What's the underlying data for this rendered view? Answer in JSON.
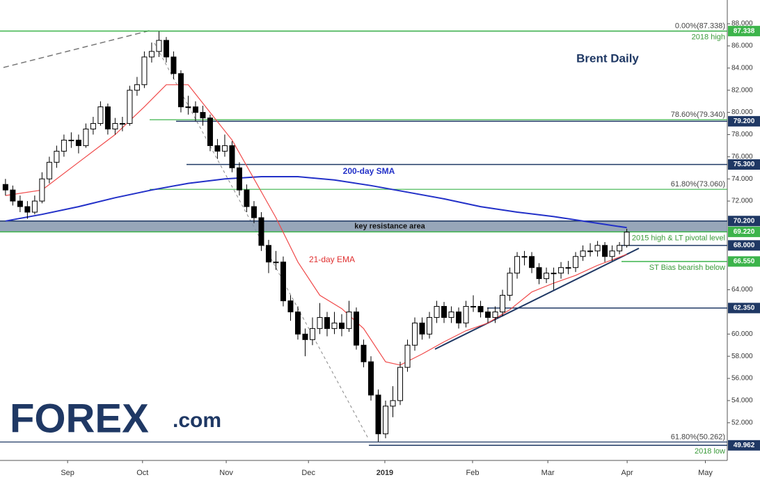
{
  "chart_data": {
    "type": "candlestick",
    "title": "Brent Daily",
    "logo": {
      "brand": "FOREX",
      "suffix": ".com"
    },
    "xlim": [
      -1.5,
      197.5
    ],
    "xticks": [
      {
        "value": 17,
        "label": "Sep"
      },
      {
        "value": 37.5,
        "label": "Oct"
      },
      {
        "value": 60.4,
        "label": "Nov"
      },
      {
        "value": 82.9,
        "label": "Dec"
      },
      {
        "value": 103.8,
        "label": "2019"
      },
      {
        "value": 127.8,
        "label": "Feb"
      },
      {
        "value": 148.4,
        "label": "Mar"
      },
      {
        "value": 170.1,
        "label": "Apr"
      },
      {
        "value": 191.5,
        "label": "May"
      }
    ],
    "ylim": [
      48.6,
      90.14
    ],
    "yticks": [
      {
        "value": 52,
        "label": "52.000"
      },
      {
        "value": 54,
        "label": "54.000"
      },
      {
        "value": 56,
        "label": "56.000"
      },
      {
        "value": 58,
        "label": "58.000"
      },
      {
        "value": 60,
        "label": "60.000"
      },
      {
        "value": 64,
        "label": "64.000"
      },
      {
        "value": 72,
        "label": "72.000"
      },
      {
        "value": 74,
        "label": "74.000"
      },
      {
        "value": 76,
        "label": "76.000"
      },
      {
        "value": 78,
        "label": "78.000"
      },
      {
        "value": 80,
        "label": "80.000"
      },
      {
        "value": 82,
        "label": "82.000"
      },
      {
        "value": 84,
        "label": "84.000"
      },
      {
        "value": 86,
        "label": "86.000"
      },
      {
        "value": 88,
        "label": "88.000"
      }
    ],
    "up_color": "#ffffff",
    "down_color": "#000000",
    "x": [
      0,
      2,
      4,
      6,
      8,
      10,
      12,
      14,
      16,
      18,
      20,
      22,
      24,
      26,
      28,
      30,
      32,
      34,
      36,
      38,
      40,
      42,
      44,
      46,
      48,
      50,
      52,
      54,
      56,
      58,
      60,
      62,
      64,
      66,
      68,
      70,
      72,
      74,
      76,
      78,
      80,
      82,
      84,
      86,
      88,
      90,
      92,
      94,
      96,
      98,
      100,
      102,
      104,
      106,
      108,
      110,
      112,
      114,
      116,
      118,
      120,
      122,
      124,
      126,
      128,
      130,
      132,
      134,
      136,
      138,
      140,
      142,
      144,
      146,
      148,
      150,
      152,
      154,
      156,
      158,
      160,
      162,
      164,
      166,
      168,
      170
    ],
    "ohlc": [
      [
        73.5,
        74,
        72.5,
        73
      ],
      [
        73,
        73.4,
        71.6,
        72
      ],
      [
        72,
        72.5,
        71,
        71.5
      ],
      [
        71.5,
        72,
        70.4,
        71
      ],
      [
        71,
        72.5,
        70.8,
        72
      ],
      [
        72,
        74.6,
        71.8,
        74
      ],
      [
        74,
        76,
        73.6,
        75.5
      ],
      [
        75.5,
        77,
        75,
        76.5
      ],
      [
        76.5,
        78,
        76,
        77.5
      ],
      [
        77.5,
        78.2,
        76.8,
        77.5
      ],
      [
        77.5,
        78,
        76.3,
        77
      ],
      [
        77,
        79,
        76.8,
        78.5
      ],
      [
        78.5,
        79.6,
        78,
        79
      ],
      [
        79,
        81,
        78.8,
        80.5
      ],
      [
        80.5,
        80.8,
        78,
        78.5
      ],
      [
        78.5,
        79.5,
        78,
        79
      ],
      [
        79,
        79.6,
        78.3,
        79
      ],
      [
        79,
        82.4,
        78.8,
        82
      ],
      [
        82,
        83.2,
        81.5,
        82.5
      ],
      [
        82.5,
        85.5,
        82.2,
        85
      ],
      [
        85,
        86.3,
        84.5,
        85.5
      ],
      [
        85.5,
        87.3,
        85,
        86.5
      ],
      [
        86.5,
        86.8,
        84.5,
        85
      ],
      [
        85,
        85.5,
        83,
        83.5
      ],
      [
        83.5,
        83.8,
        80,
        80.5
      ],
      [
        80.5,
        81.5,
        79.8,
        80.5
      ],
      [
        80.5,
        81,
        79.2,
        80
      ],
      [
        80,
        80.6,
        78.8,
        79.5
      ],
      [
        79.5,
        79.8,
        76.5,
        77
      ],
      [
        77,
        77.6,
        75.8,
        76.5
      ],
      [
        76.5,
        78,
        76,
        77
      ],
      [
        77,
        77.4,
        74.6,
        75
      ],
      [
        75,
        75.5,
        72.5,
        73
      ],
      [
        73,
        73.5,
        71,
        71.5
      ],
      [
        71.5,
        72,
        70,
        70.5
      ],
      [
        70.5,
        71,
        67.5,
        68
      ],
      [
        68,
        68.5,
        65.5,
        66.5
      ],
      [
        66.5,
        67.5,
        65.8,
        66.5
      ],
      [
        66.5,
        67,
        62.5,
        63
      ],
      [
        63,
        63.5,
        61.2,
        62
      ],
      [
        62,
        62.5,
        59.5,
        60
      ],
      [
        60,
        60.5,
        58,
        59.5
      ],
      [
        59.5,
        61.5,
        59,
        60.5
      ],
      [
        60.5,
        62.8,
        60,
        61.5
      ],
      [
        61.5,
        62,
        59.8,
        60.5
      ],
      [
        60.5,
        62,
        60,
        61
      ],
      [
        61,
        61.8,
        59.8,
        60.5
      ],
      [
        60.5,
        63,
        60.2,
        62
      ],
      [
        62,
        62.4,
        58.6,
        59
      ],
      [
        59,
        59.5,
        57,
        57.5
      ],
      [
        57.5,
        58,
        54,
        54.5
      ],
      [
        54.5,
        55,
        50.3,
        51
      ],
      [
        51,
        54,
        50.6,
        53.5
      ],
      [
        53.5,
        55.3,
        52.5,
        54
      ],
      [
        54,
        57.5,
        53.6,
        57
      ],
      [
        57,
        59.5,
        56.6,
        59
      ],
      [
        59,
        61.5,
        58.5,
        61
      ],
      [
        61,
        61.5,
        59.5,
        60
      ],
      [
        60,
        62,
        59.6,
        61.5
      ],
      [
        61.5,
        63,
        61,
        62.5
      ],
      [
        62.5,
        62.9,
        61,
        61.5
      ],
      [
        61.5,
        62.5,
        61,
        62
      ],
      [
        62,
        62.4,
        60.5,
        61
      ],
      [
        61,
        63,
        60.6,
        62.5
      ],
      [
        62.5,
        63.5,
        62,
        62.5
      ],
      [
        62.5,
        63,
        61.5,
        62
      ],
      [
        62,
        62.4,
        61,
        61.5
      ],
      [
        61.5,
        62.5,
        61,
        62
      ],
      [
        62,
        64,
        61.6,
        63.5
      ],
      [
        63.5,
        66,
        63,
        65.5
      ],
      [
        65.5,
        67.4,
        65,
        67
      ],
      [
        67,
        67.5,
        66.2,
        67
      ],
      [
        67,
        67.4,
        65.5,
        66
      ],
      [
        66,
        66.4,
        64.5,
        65
      ],
      [
        65,
        66,
        64.6,
        65.5
      ],
      [
        65.5,
        66,
        64,
        65.5
      ],
      [
        65.5,
        66.5,
        65,
        66
      ],
      [
        66,
        66.6,
        65.4,
        66
      ],
      [
        66,
        67.4,
        65.6,
        67
      ],
      [
        67,
        68,
        66.6,
        67.5
      ],
      [
        67.5,
        68.2,
        67,
        67.5
      ],
      [
        67.5,
        68.4,
        67,
        68
      ],
      [
        68,
        68.3,
        66.5,
        67
      ],
      [
        67,
        68,
        66.6,
        67.5
      ],
      [
        67.5,
        68.3,
        67.2,
        68
      ],
      [
        68,
        69.5,
        67.8,
        69.2
      ]
    ],
    "ema": {
      "name": "21-day EMA",
      "color": "#f04a4a",
      "x": [
        0,
        10,
        20,
        30,
        38,
        44,
        50,
        56,
        62,
        68,
        74,
        80,
        86,
        92,
        98,
        104,
        108,
        114,
        120,
        126,
        132,
        138,
        144,
        150,
        156,
        162,
        170
      ],
      "values": [
        72.5,
        73,
        75.5,
        78,
        80.5,
        82.5,
        82.5,
        80,
        77.5,
        74,
        70.5,
        66.5,
        63.5,
        62.3,
        60.5,
        57.5,
        57.2,
        58.2,
        59.3,
        60.3,
        61,
        62.2,
        63.8,
        64.6,
        65.3,
        66.2,
        67.2
      ]
    },
    "sma": {
      "name": "200-day SMA",
      "color": "#2230c8",
      "x": [
        0,
        10,
        20,
        30,
        40,
        50,
        60,
        70,
        80,
        90,
        100,
        110,
        120,
        130,
        140,
        150,
        160,
        170
      ],
      "values": [
        70.2,
        70.8,
        71.5,
        72.3,
        73,
        73.6,
        74,
        74.2,
        74.2,
        73.9,
        73.4,
        72.8,
        72.2,
        71.5,
        71,
        70.6,
        70.1,
        69.6
      ]
    },
    "levels": [
      {
        "value": 87.338,
        "label": "87.338",
        "note": "2018 high",
        "color": "#3cb44b"
      },
      {
        "value": 79.2,
        "label": "79.200",
        "color": "#1f3864"
      },
      {
        "value": 75.3,
        "label": "75.300",
        "color": "#1f3864"
      },
      {
        "value": 70.2,
        "label": "70.200",
        "color": "#1f3864"
      },
      {
        "value": 69.22,
        "label": "69.220",
        "note": "2015 high & LT pivotal level",
        "color": "#3cb44b"
      },
      {
        "value": 68,
        "label": "68.000",
        "color": "#1f3864"
      },
      {
        "value": 66.55,
        "label": "66.550",
        "note": "ST Bias bearish below",
        "color": "#3cb44b"
      },
      {
        "value": 62.35,
        "label": "62.350",
        "color": "#1f3864"
      },
      {
        "value": 49.962,
        "label": "49.962",
        "note": "2018 low",
        "color": "#1f3864"
      }
    ],
    "fibs": [
      {
        "value": 87.338,
        "label": "0.00%(87.338)",
        "color": "#1f3864"
      },
      {
        "value": 79.34,
        "label": "78.60%(79.340)",
        "color": "#3cb44b"
      },
      {
        "value": 73.06,
        "label": "61.80%(73.060)",
        "color": "#3cb44b"
      },
      {
        "value": 50.262,
        "label": "61.80%(50.262)",
        "color": "#1f3864"
      }
    ],
    "resistance_zone": {
      "label": "key resistance area",
      "color": "#8597ad"
    }
  }
}
